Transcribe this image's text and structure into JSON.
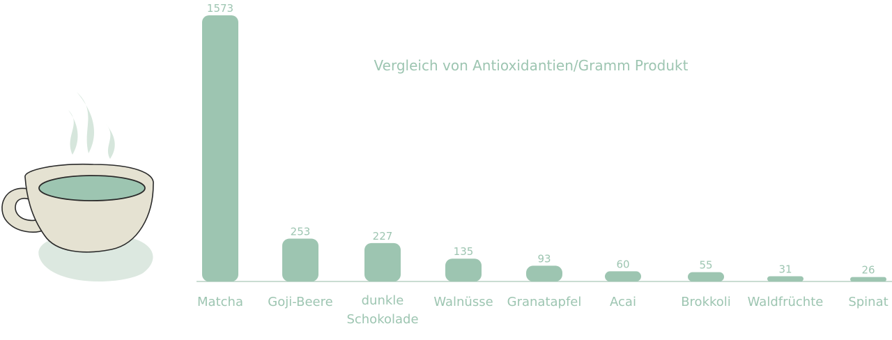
{
  "colors": {
    "bar": "#9dc5b1",
    "text": "#9dc5b1",
    "axis": "#a9c8b8",
    "cup_body": "#e5e2d2",
    "cup_outline": "#2a2a2a",
    "tea": "#9dc5b1",
    "shadow": "#dce8e0",
    "steam": "#d6e6dc"
  },
  "illustration": {
    "icon": "tea-cup-icon"
  },
  "chart_data": {
    "type": "bar",
    "title": "Vergleich von Antioxidantien/Gramm Produkt",
    "categories": [
      "Matcha",
      "Goji-Beere",
      "dunkle Schokolade",
      "Walnüsse",
      "Granatapfel",
      "Acai",
      "Brokkoli",
      "Waldfrüchte",
      "Spinat"
    ],
    "category_lines": [
      [
        "Matcha"
      ],
      [
        "Goji-Beere"
      ],
      [
        "dunkle",
        "Schokolade"
      ],
      [
        "Walnüsse"
      ],
      [
        "Granatapfel"
      ],
      [
        "Acai"
      ],
      [
        "Brokkoli"
      ],
      [
        "Waldfrüchte"
      ],
      [
        "Spinat"
      ]
    ],
    "values": [
      1573,
      253,
      227,
      135,
      93,
      60,
      55,
      31,
      26
    ],
    "value_labels": [
      "1573",
      "253",
      "227",
      "135",
      "93",
      "60",
      "55",
      "31",
      "26"
    ],
    "xlabel": "",
    "ylabel": "",
    "grid": false,
    "legend": "none"
  }
}
